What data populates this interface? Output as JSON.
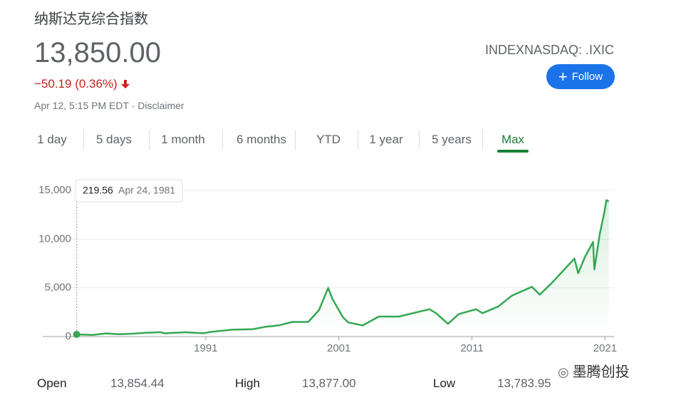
{
  "header": {
    "title": "纳斯达克综合指数",
    "price": "13,850.00",
    "change": "−50.19 (0.36%)",
    "timestamp": "Apr 12, 5:15 PM EDT · Disclaimer",
    "ticker": "INDEXNASDAQ: .IXIC",
    "follow": "Follow"
  },
  "tabs": {
    "items": [
      "1 day",
      "5 days",
      "1 month",
      "6 months",
      "YTD",
      "1 year",
      "5 years",
      "Max"
    ],
    "selected_index": 7
  },
  "chart_data": {
    "type": "line",
    "x": [
      1981.3,
      1982.5,
      1983.5,
      1984.5,
      1985.5,
      1986.5,
      1987.6,
      1987.9,
      1989.5,
      1990.8,
      1991.5,
      1993,
      1994.5,
      1995.5,
      1996.5,
      1997.5,
      1998.7,
      1999.5,
      2000.2,
      2000.5,
      2001.3,
      2001.7,
      2002.8,
      2004,
      2005.5,
      2007.8,
      2008.3,
      2009.2,
      2010,
      2011.3,
      2011.8,
      2013,
      2014,
      2015.5,
      2016.1,
      2017,
      2018.7,
      2018.98,
      2019.5,
      2020.1,
      2020.2,
      2020.6,
      2020.95,
      2021.1,
      2021.28
    ],
    "series": [
      {
        "color": "#34a853",
        "values": [
          219.56,
          170,
          320,
          240,
          290,
          380,
          450,
          330,
          440,
          340,
          500,
          700,
          750,
          1000,
          1150,
          1500,
          1500,
          2700,
          5000,
          3900,
          2000,
          1450,
          1140,
          2050,
          2050,
          2800,
          2400,
          1300,
          2300,
          2800,
          2400,
          3100,
          4200,
          5100,
          4300,
          5500,
          8000,
          6500,
          8200,
          9700,
          6900,
          10500,
          12800,
          14000,
          13850
        ]
      }
    ],
    "tooltip_date": "Apr 24, 1981",
    "xlim": [
      1981.3,
      2021.3
    ],
    "xticks": [
      1991,
      2001,
      2011,
      2021
    ],
    "ylim": [
      0,
      15000
    ],
    "yticks": [
      0,
      {
        "value": 5000,
        "label": "5,000"
      },
      {
        "value": 10000,
        "label": "10,000"
      },
      {
        "value": 15000,
        "label": "15,000"
      }
    ],
    "grid": true
  },
  "stats": [
    {
      "label": "Open",
      "value": "13,854.44"
    },
    {
      "label": "High",
      "value": "13,877.00"
    },
    {
      "label": "Low",
      "value": "13,783.95"
    }
  ],
  "watermark": "墨腾创投"
}
